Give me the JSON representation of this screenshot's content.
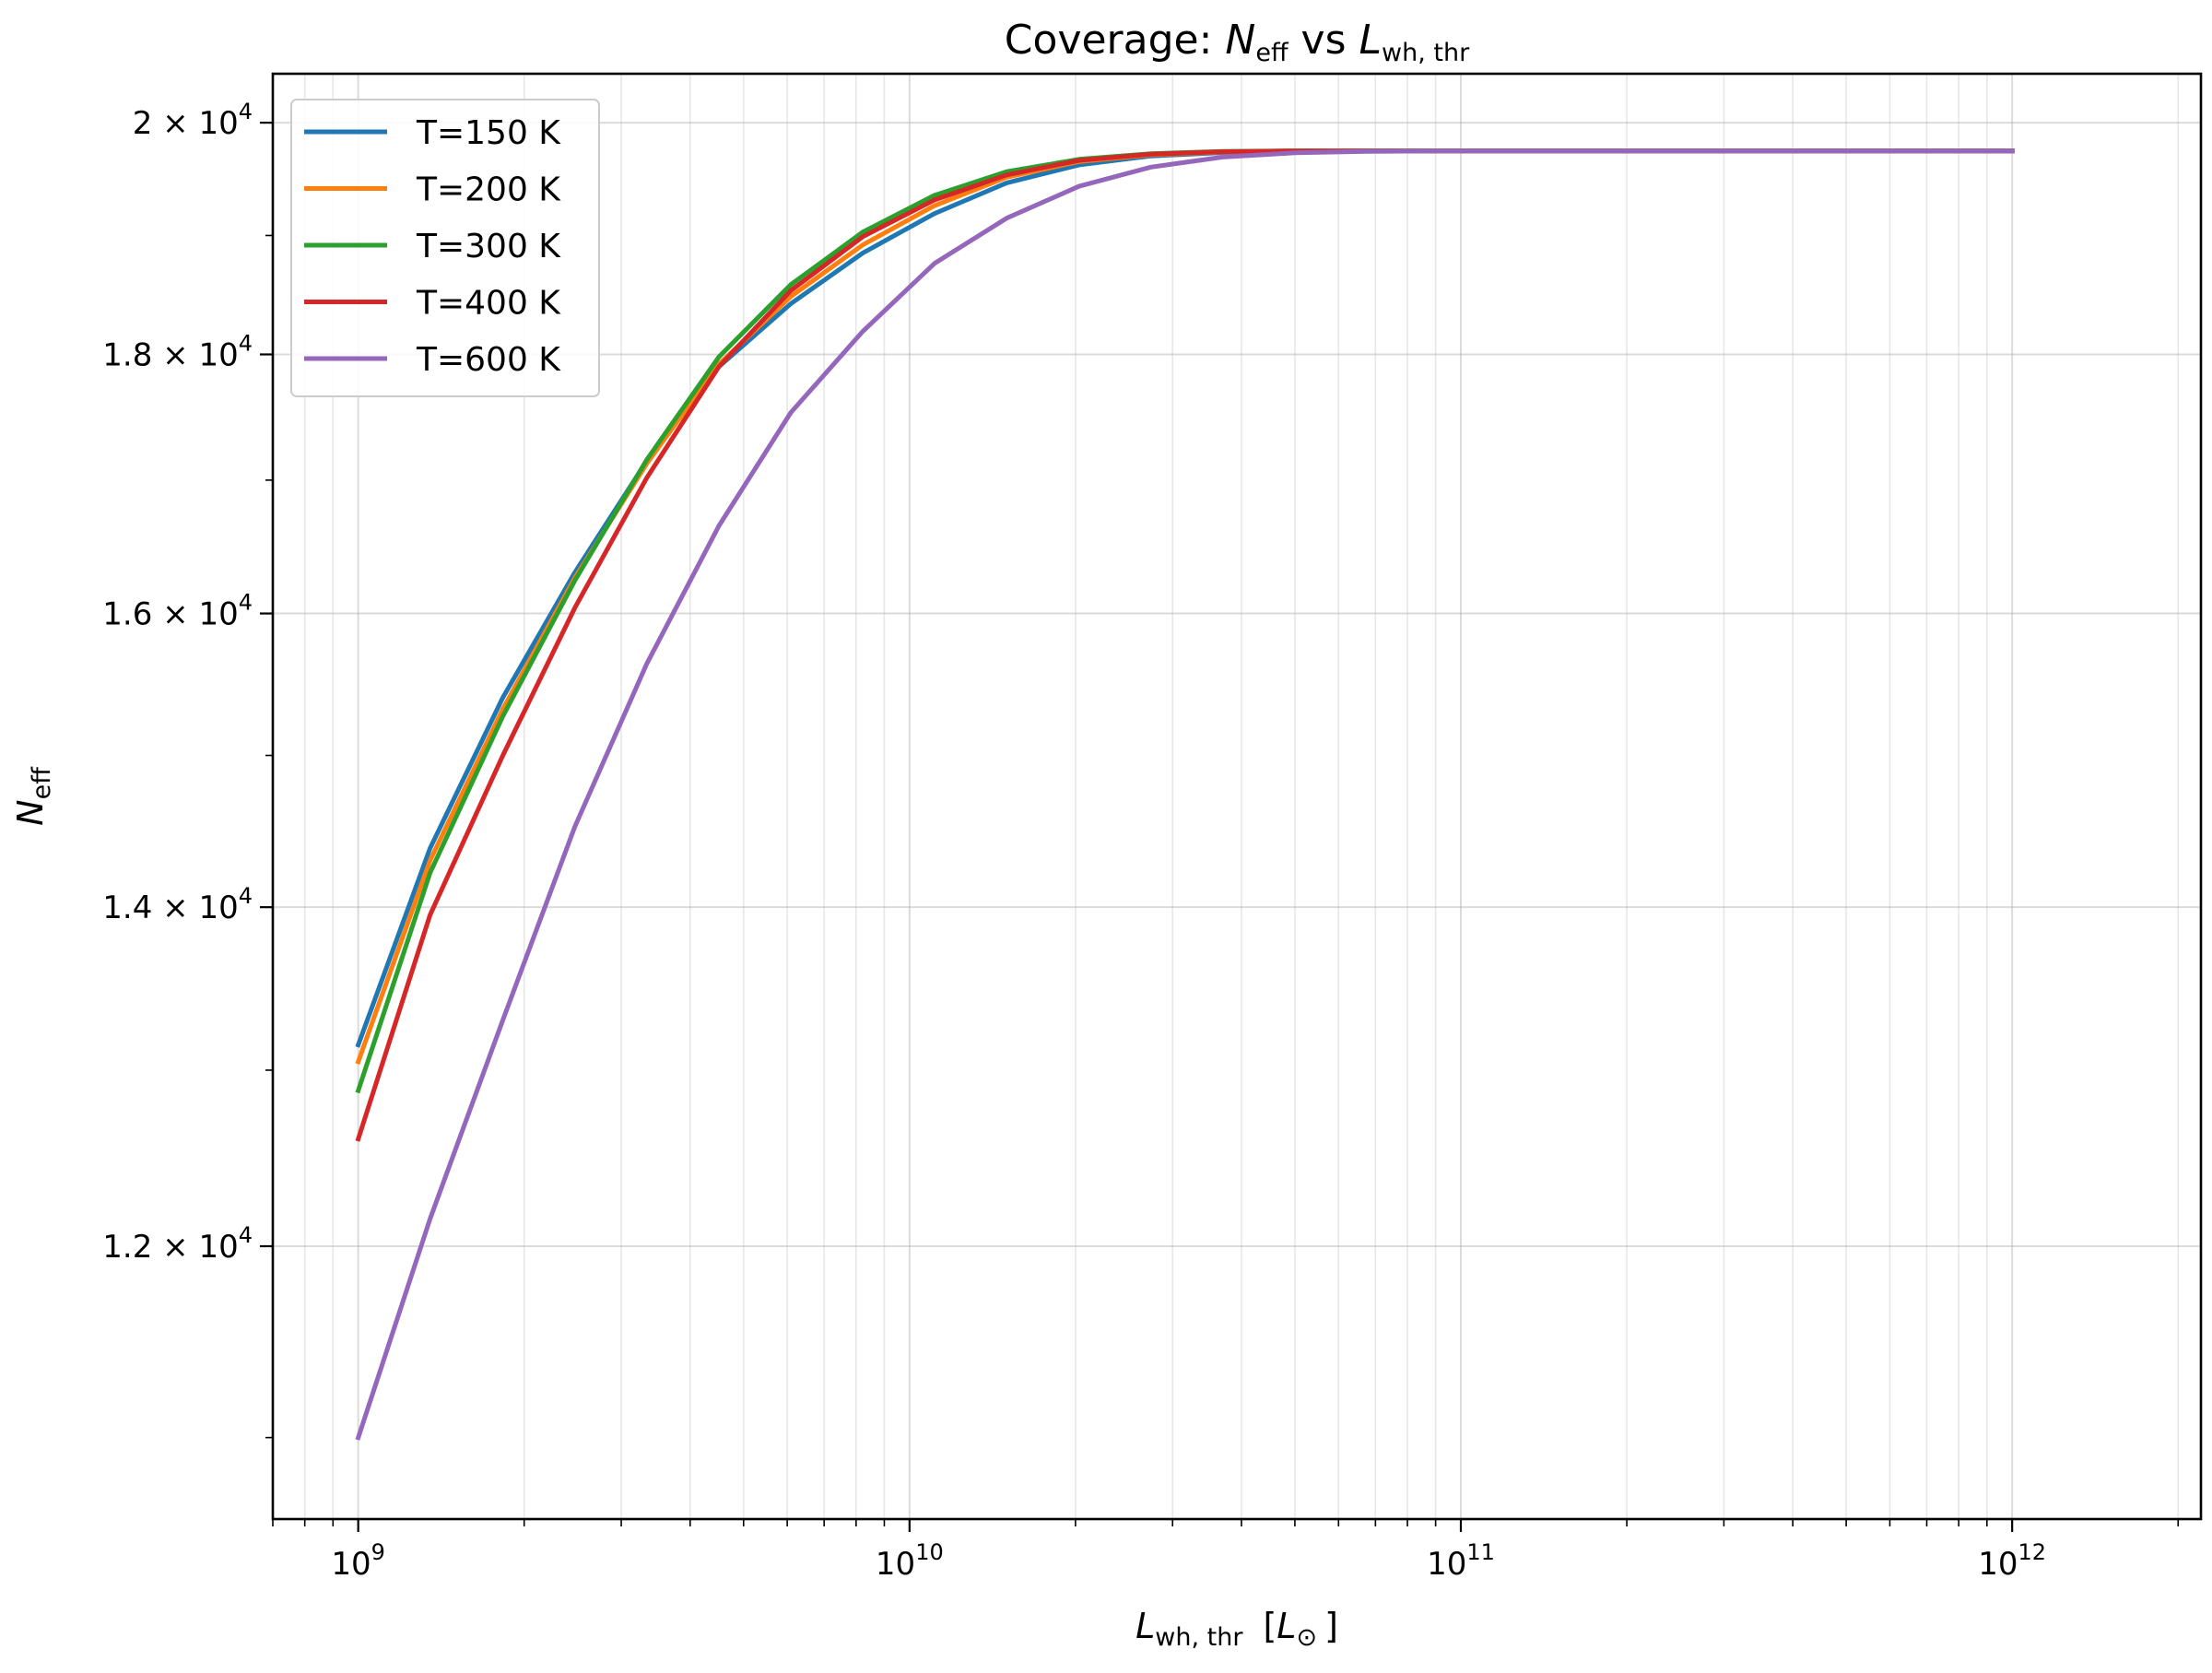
{
  "chart_data": {
    "type": "line",
    "title": {
      "prefix": "Coverage: ",
      "n_symbol": "N",
      "n_sub": "eff",
      "middle": " vs ",
      "l_symbol": "L",
      "l_sub": "wh, thr"
    },
    "xlabel": {
      "symbol": "L",
      "sub": "wh, thr",
      "unit_open": "[",
      "unit_symbol": "L",
      "unit_sub": "⊙",
      "unit_close": "]"
    },
    "ylabel": {
      "symbol": "N",
      "sub": "eff"
    },
    "x_scale": "log",
    "y_scale": "log",
    "xlim": [
      700000000,
      2200000000000
    ],
    "ylim": [
      10600,
      20450
    ],
    "x_ticks": [
      {
        "value": 1000000000,
        "base": "10",
        "exp": "9"
      },
      {
        "value": 10000000000,
        "base": "10",
        "exp": "10"
      },
      {
        "value": 100000000000,
        "base": "10",
        "exp": "11"
      },
      {
        "value": 1000000000000,
        "base": "10",
        "exp": "12"
      }
    ],
    "y_ticks": [
      {
        "value": 12000,
        "mantissa": "1.2",
        "times": "×",
        "base": "10",
        "exp": "4"
      },
      {
        "value": 14000,
        "mantissa": "1.4",
        "times": "×",
        "base": "10",
        "exp": "4"
      },
      {
        "value": 16000,
        "mantissa": "1.6",
        "times": "×",
        "base": "10",
        "exp": "4"
      },
      {
        "value": 18000,
        "mantissa": "1.8",
        "times": "×",
        "base": "10",
        "exp": "4"
      },
      {
        "value": 20000,
        "mantissa": "2",
        "times": "×",
        "base": "10",
        "exp": "4"
      }
    ],
    "grid": true,
    "legend_position": "upper-left",
    "x": [
      1000000000,
      1350000000,
      1830000000,
      2470000000,
      3340000000,
      4510000000,
      6090000000,
      8230000000,
      11100000000,
      15000000000,
      20300000000,
      27400000000,
      37000000000,
      50000000000,
      67600000000,
      91200000000,
      123000000000,
      1000000000000
    ],
    "series": [
      {
        "name": "T=150 K",
        "color": "#1f77b4",
        "values": [
          13150,
          14380,
          15400,
          16300,
          17150,
          17900,
          18420,
          18850,
          19190,
          19460,
          19620,
          19700,
          19730,
          19740,
          19745,
          19745,
          19745,
          19745
        ]
      },
      {
        "name": "T=200 K",
        "color": "#ff7f0e",
        "values": [
          13050,
          14300,
          15320,
          16260,
          17130,
          17920,
          18480,
          18920,
          19260,
          19510,
          19650,
          19710,
          19735,
          19745,
          19745,
          19745,
          19745,
          19745
        ]
      },
      {
        "name": "T=300 K",
        "color": "#2ca02c",
        "values": [
          12880,
          14220,
          15270,
          16240,
          17160,
          17980,
          18580,
          19030,
          19350,
          19560,
          19670,
          19720,
          19740,
          19745,
          19745,
          19745,
          19745,
          19745
        ]
      },
      {
        "name": "T=400 K",
        "color": "#d62728",
        "values": [
          12600,
          13950,
          15000,
          16040,
          17020,
          17900,
          18530,
          18990,
          19310,
          19530,
          19660,
          19715,
          19738,
          19745,
          19745,
          19745,
          19745,
          19745
        ]
      },
      {
        "name": "T=600 K",
        "color": "#9467bd",
        "values": [
          11000,
          12150,
          13300,
          14520,
          15640,
          16650,
          17530,
          18190,
          18760,
          19150,
          19430,
          19600,
          19690,
          19728,
          19740,
          19745,
          19745,
          19745
        ]
      }
    ]
  }
}
